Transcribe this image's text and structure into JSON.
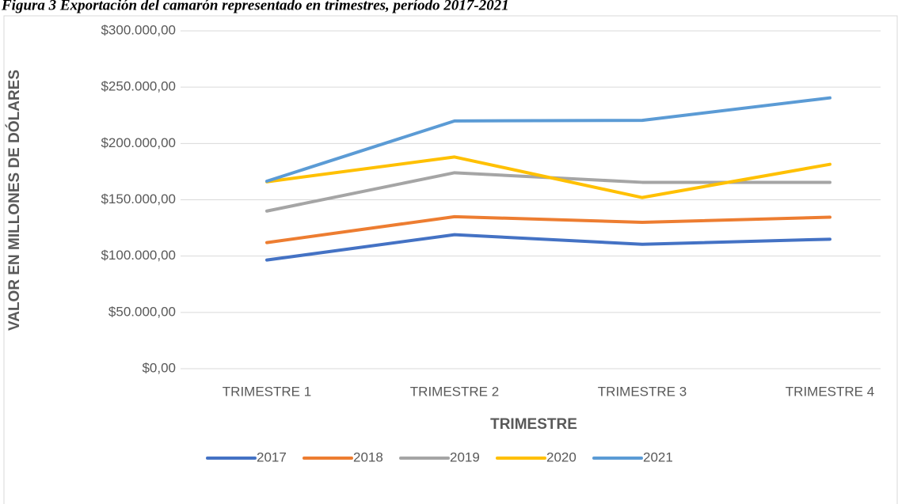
{
  "chart_data": {
    "type": "line",
    "title": "Figura 3 Exportación del camarón representado en trimestres, período 2017-2021",
    "x_label": "TRIMESTRE",
    "y_label": "VALOR EN MILLONES DE DÓLARES",
    "categories": [
      "TRIMESTRE 1",
      "TRIMESTRE 2",
      "TRIMESTRE 3",
      "TRIMESTRE 4"
    ],
    "series": [
      {
        "name": "2017",
        "color": "#4472c4",
        "values": [
          96500,
          119000,
          110500,
          115000
        ]
      },
      {
        "name": "2018",
        "color": "#ed7d31",
        "values": [
          112000,
          135000,
          130000,
          134500
        ]
      },
      {
        "name": "2019",
        "color": "#a5a5a5",
        "values": [
          140000,
          174000,
          165500,
          165500
        ]
      },
      {
        "name": "2020",
        "color": "#ffc000",
        "values": [
          166000,
          188000,
          152000,
          181500
        ]
      },
      {
        "name": "2021",
        "color": "#5b9bd5",
        "values": [
          166500,
          220000,
          220500,
          240500
        ]
      }
    ],
    "ylim": [
      0,
      300000
    ],
    "yticks": [
      {
        "value": 0,
        "label": "$0,00"
      },
      {
        "value": 50000,
        "label": "$50.000,00"
      },
      {
        "value": 100000,
        "label": "$100.000,00"
      },
      {
        "value": 150000,
        "label": "$150.000,00"
      },
      {
        "value": 200000,
        "label": "$200.000,00"
      },
      {
        "value": 250000,
        "label": "$250.000,00"
      },
      {
        "value": 300000,
        "label": "$300.000,00"
      }
    ],
    "grid": true,
    "legend": "bottom"
  }
}
